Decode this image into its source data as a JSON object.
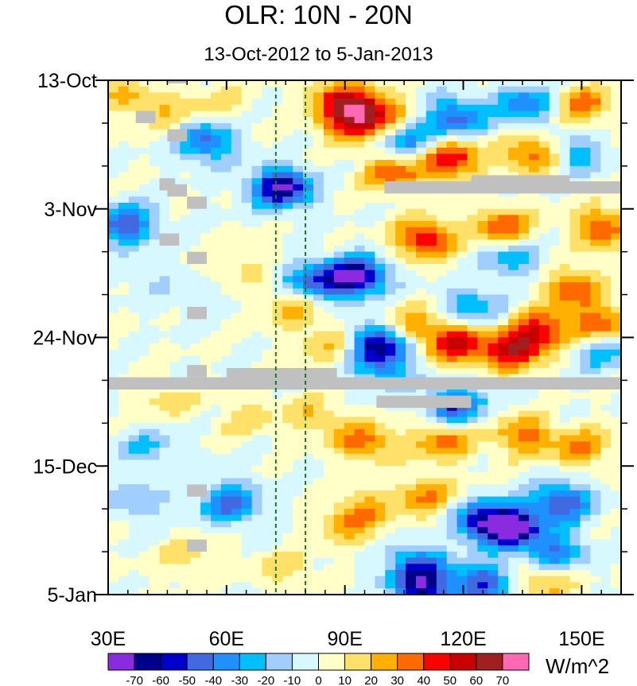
{
  "chart_data": {
    "type": "heatmap",
    "title": "OLR: 10N - 20N",
    "subtitle": "13-Oct-2012 to 5-Jan-2013",
    "x_axis": {
      "range": [
        30,
        160
      ],
      "ticks": [
        30,
        60,
        90,
        120,
        150
      ],
      "tick_labels": [
        "30E",
        "60E",
        "90E",
        "120E",
        "150E"
      ]
    },
    "y_axis": {
      "range_days": [
        0,
        84
      ],
      "ticks_days": [
        0,
        21,
        42,
        63,
        84
      ],
      "tick_labels": [
        "13-Oct",
        "3-Nov",
        "24-Nov",
        "15-Dec",
        "5-Jan"
      ]
    },
    "reference_lines_lon": [
      72.5,
      80
    ],
    "colorbar": {
      "unit": "W/m^2",
      "labels": [
        "-70",
        "-60",
        "-50",
        "-40",
        "-30",
        "-20",
        "-10",
        "0",
        "10",
        "20",
        "30",
        "40",
        "50",
        "60",
        "70"
      ],
      "colors": [
        "#8a2be2",
        "#00008b",
        "#0000cd",
        "#4169e1",
        "#1e90ff",
        "#00bfff",
        "#a0cfff",
        "#d8f8ff",
        "#ffffc8",
        "#ffe16a",
        "#ffb000",
        "#ff6a00",
        "#ff0000",
        "#c80000",
        "#a02020",
        "#ff69b4"
      ],
      "bin_edges": [
        -70,
        -60,
        -50,
        -40,
        -30,
        -20,
        -10,
        0,
        10,
        20,
        30,
        40,
        50,
        60,
        70
      ]
    },
    "features": [
      {
        "type": "anomaly",
        "lon": 55,
        "day": 10,
        "value": -45
      },
      {
        "type": "anomaly",
        "lon": 74,
        "day": 17.5,
        "value": -72
      },
      {
        "type": "anomaly",
        "lon": 34,
        "day": 23.5,
        "value": -50
      },
      {
        "type": "anomaly",
        "lon": 82,
        "day": 33,
        "value": -45
      },
      {
        "type": "anomaly",
        "lon": 93,
        "day": 32,
        "value": -72
      },
      {
        "type": "anomaly",
        "lon": 99,
        "day": 43,
        "value": -60
      },
      {
        "type": "anomaly",
        "lon": 118,
        "day": 53,
        "value": -50
      },
      {
        "type": "anomaly",
        "lon": 100,
        "day": 47,
        "value": -30
      },
      {
        "type": "anomaly",
        "lon": 61,
        "day": 69,
        "value": -45
      },
      {
        "type": "anomaly",
        "lon": 38,
        "day": 69,
        "value": -20
      },
      {
        "type": "anomaly",
        "lon": 125,
        "day": 72,
        "value": -50
      },
      {
        "type": "anomaly",
        "lon": 132,
        "day": 73,
        "value": -72
      },
      {
        "type": "anomaly",
        "lon": 145,
        "day": 69,
        "value": -50
      },
      {
        "type": "anomaly",
        "lon": 108,
        "day": 79,
        "value": -40
      },
      {
        "type": "anomaly",
        "lon": 110,
        "day": 83,
        "value": -60
      },
      {
        "type": "anomaly",
        "lon": 125,
        "day": 82,
        "value": -50
      },
      {
        "type": "anomaly",
        "lon": 143,
        "day": 77,
        "value": -40
      },
      {
        "type": "anomaly",
        "lon": 105,
        "day": 10,
        "value": -35
      },
      {
        "type": "anomaly",
        "lon": 118,
        "day": 6,
        "value": -45
      },
      {
        "type": "anomaly",
        "lon": 136,
        "day": 4,
        "value": -40
      },
      {
        "type": "anomaly",
        "lon": 148,
        "day": 12,
        "value": -30
      },
      {
        "type": "anomaly",
        "lon": 155,
        "day": 44,
        "value": -30
      },
      {
        "type": "anomaly",
        "lon": 132,
        "day": 29,
        "value": -30
      },
      {
        "type": "anomaly",
        "lon": 122,
        "day": 37,
        "value": -30
      },
      {
        "type": "anomaly",
        "lon": 40,
        "day": 60,
        "value": -20
      },
      {
        "type": "anomaly",
        "lon": 88,
        "day": 3,
        "value": 40
      },
      {
        "type": "anomaly",
        "lon": 98,
        "day": 5,
        "value": 40
      },
      {
        "type": "anomaly",
        "lon": 92,
        "day": 7,
        "value": 50
      },
      {
        "type": "anomaly",
        "lon": 102,
        "day": 15,
        "value": 40
      },
      {
        "type": "anomaly",
        "lon": 117,
        "day": 13,
        "value": 50
      },
      {
        "type": "anomaly",
        "lon": 138,
        "day": 12,
        "value": 40
      },
      {
        "type": "anomaly",
        "lon": 150,
        "day": 4,
        "value": 35
      },
      {
        "type": "anomaly",
        "lon": 155,
        "day": 24,
        "value": 40
      },
      {
        "type": "anomaly",
        "lon": 110,
        "day": 26,
        "value": 50
      },
      {
        "type": "anomaly",
        "lon": 130,
        "day": 24,
        "value": 40
      },
      {
        "type": "anomaly",
        "lon": 148,
        "day": 34,
        "value": 40
      },
      {
        "type": "anomaly",
        "lon": 118,
        "day": 43,
        "value": 50
      },
      {
        "type": "anomaly",
        "lon": 132,
        "day": 44,
        "value": 55
      },
      {
        "type": "anomaly",
        "lon": 140,
        "day": 41,
        "value": 45
      },
      {
        "type": "anomaly",
        "lon": 155,
        "day": 40,
        "value": 40
      },
      {
        "type": "anomaly",
        "lon": 107,
        "day": 40,
        "value": 30
      },
      {
        "type": "anomaly",
        "lon": 95,
        "day": 59,
        "value": 35
      },
      {
        "type": "anomaly",
        "lon": 115,
        "day": 59,
        "value": 35
      },
      {
        "type": "anomaly",
        "lon": 135,
        "day": 58,
        "value": 35
      },
      {
        "type": "anomaly",
        "lon": 150,
        "day": 60,
        "value": 30
      },
      {
        "type": "anomaly",
        "lon": 110,
        "day": 68,
        "value": 30
      },
      {
        "type": "anomaly",
        "lon": 95,
        "day": 70,
        "value": 25
      },
      {
        "type": "anomaly",
        "lon": 82,
        "day": 55,
        "value": 20
      },
      {
        "type": "anomaly",
        "lon": 77,
        "day": 37,
        "value": 25
      },
      {
        "type": "anomaly",
        "lon": 85,
        "day": 43,
        "value": 20
      },
      {
        "type": "anomaly",
        "lon": 90,
        "day": 73,
        "value": 20
      },
      {
        "type": "anomaly",
        "lon": 140,
        "day": 82,
        "value": 25
      },
      {
        "type": "anomaly",
        "lon": 35,
        "day": 3,
        "value": 20
      },
      {
        "type": "anomaly",
        "lon": 45,
        "day": 5,
        "value": 15
      },
      {
        "type": "anomaly",
        "lon": 58,
        "day": 4,
        "value": 15
      },
      {
        "type": "anomaly",
        "lon": 63,
        "day": 30,
        "value": 15
      },
      {
        "type": "anomaly",
        "lon": 65,
        "day": 55,
        "value": 15
      },
      {
        "type": "anomaly",
        "lon": 45,
        "day": 52,
        "value": 15
      },
      {
        "type": "anomaly",
        "lon": 50,
        "day": 78,
        "value": 15
      },
      {
        "type": "anomaly",
        "lon": 75,
        "day": 80,
        "value": 15
      },
      {
        "type": "anomaly",
        "lon": 40,
        "day": 32,
        "value": -8
      },
      {
        "type": "anomaly",
        "lon": 52,
        "day": 36,
        "value": -8
      }
    ],
    "missing_data": [
      {
        "lon": [
          30,
          160
        ],
        "day": [
          48.5,
          50.5
        ]
      },
      {
        "lon": [
          100,
          160
        ],
        "day": [
          16.5,
          18.5
        ]
      },
      {
        "lon": [
          122,
          147
        ],
        "day": [
          15.5,
          17
        ]
      },
      {
        "lon": [
          98,
          122
        ],
        "day": [
          51.5,
          53.5
        ]
      },
      {
        "lon": [
          60,
          88
        ],
        "day": [
          47,
          49
        ]
      },
      {
        "lon": [
          50,
          55
        ],
        "day": [
          46.5,
          48.5
        ]
      },
      {
        "lon": [
          45,
          50
        ],
        "day": [
          -0.3,
          0.5
        ]
      },
      {
        "lon": [
          37,
          42
        ],
        "day": [
          5,
          7
        ]
      },
      {
        "lon": [
          45,
          50
        ],
        "day": [
          8,
          10
        ]
      },
      {
        "lon": [
          43,
          47
        ],
        "day": [
          16,
          18
        ]
      },
      {
        "lon": [
          45,
          50
        ],
        "day": [
          17,
          19
        ]
      },
      {
        "lon": [
          50,
          55
        ],
        "day": [
          19,
          21
        ]
      },
      {
        "lon": [
          43,
          48
        ],
        "day": [
          25,
          27
        ]
      },
      {
        "lon": [
          50,
          55
        ],
        "day": [
          28,
          30
        ]
      },
      {
        "lon": [
          50,
          55
        ],
        "day": [
          37,
          39
        ]
      },
      {
        "lon": [
          50,
          55
        ],
        "day": [
          66,
          68
        ]
      },
      {
        "lon": [
          50,
          55
        ],
        "day": [
          75,
          77
        ]
      }
    ]
  }
}
